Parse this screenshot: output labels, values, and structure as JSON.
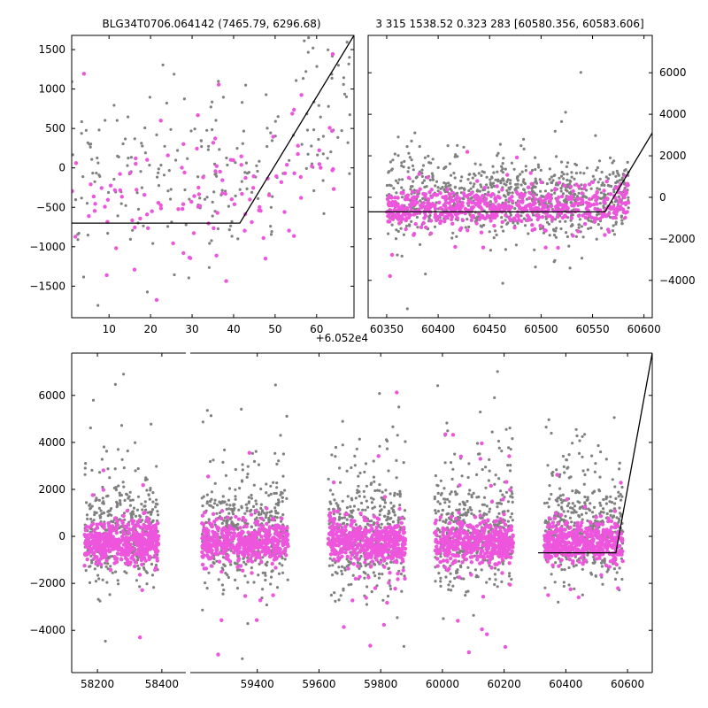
{
  "chart_data": [
    {
      "id": "top-left",
      "type": "scatter",
      "title": "BLG34T0706.064142 (7465.79, 6296.68)",
      "xlim": [
        1,
        69
      ],
      "ylim": [
        -1900,
        1680
      ],
      "xticks": [
        10,
        20,
        30,
        40,
        50,
        60
      ],
      "yticks": [
        -1500,
        -1000,
        -500,
        0,
        500,
        1000,
        1500
      ],
      "ytick_side": "left",
      "offset_text": "",
      "series": [
        {
          "role": "grey-points",
          "color": "#808080",
          "n": 230,
          "seed": 11,
          "x_range": [
            1,
            68
          ],
          "y_center": 0,
          "y_sigma": 550
        },
        {
          "role": "magenta-points",
          "color": "#ee55dd",
          "n": 120,
          "seed": 12,
          "x_range": [
            1,
            65
          ],
          "y_center": -500,
          "y_sigma": 450
        }
      ],
      "model_line": {
        "x": [
          1,
          41.5,
          69
        ],
        "y": [
          -700,
          -700,
          1680
        ]
      }
    },
    {
      "id": "top-right",
      "type": "scatter",
      "title": "3 315 1538.52 0.323 283 [60580.356, 60583.606]",
      "xlim": [
        60332,
        60608
      ],
      "ylim": [
        -5800,
        7800
      ],
      "xticks": [
        60350,
        60400,
        60450,
        60500,
        60550,
        60600
      ],
      "yticks": [
        -4000,
        -2000,
        0,
        2000,
        4000,
        6000
      ],
      "ytick_side": "right",
      "offset_text": "+6.052e4",
      "series": [
        {
          "role": "grey-points",
          "color": "#808080",
          "n": 900,
          "seed": 21,
          "x_range": [
            60350,
            60585
          ],
          "y_center": 0,
          "y_sigma": 900
        },
        {
          "role": "magenta-points",
          "color": "#ee55dd",
          "n": 600,
          "seed": 22,
          "x_range": [
            60350,
            60585
          ],
          "y_center": -500,
          "y_sigma": 450
        }
      ],
      "model_line": {
        "x": [
          60332,
          60562,
          60608
        ],
        "y": [
          -700,
          -700,
          3100
        ]
      }
    },
    {
      "id": "bottom",
      "type": "scatter",
      "title": "",
      "xlim": [
        58120,
        60680
      ],
      "ylim": [
        -5800,
        7800
      ],
      "xticks": [
        58200,
        58400,
        59400,
        59600,
        59800,
        60000,
        60200,
        60400,
        60600
      ],
      "yticks": [
        -4000,
        -2000,
        0,
        2000,
        4000,
        6000
      ],
      "ytick_side": "left",
      "offset_text": "",
      "broken_axis": {
        "break_after": 58480,
        "segments": [
          [
            58120,
            58480
          ],
          [
            59180,
            60680
          ]
        ]
      },
      "seasons": [
        [
          58160,
          58390
        ],
        [
          59220,
          59500
        ],
        [
          59630,
          59880
        ],
        [
          59975,
          60230
        ],
        [
          60330,
          60585
        ]
      ],
      "series": [
        {
          "role": "grey-points",
          "color": "#808080",
          "n": 2200,
          "seed": 31,
          "y_center": 0,
          "y_sigma": 1000
        },
        {
          "role": "magenta-points",
          "color": "#ee55dd",
          "n": 2400,
          "seed": 32,
          "y_center": -250,
          "y_sigma": 450
        }
      ],
      "model_line": {
        "x": [
          60310,
          60562,
          60680
        ],
        "y": [
          -700,
          -700,
          7800
        ]
      }
    }
  ]
}
